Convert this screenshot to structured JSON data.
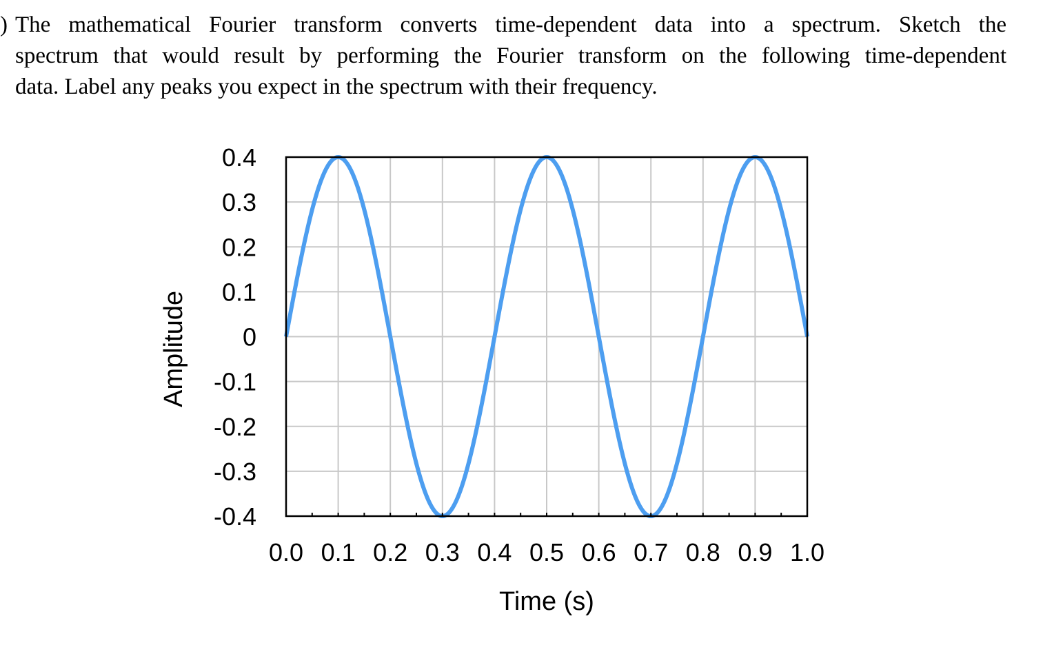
{
  "question": {
    "marker": ")",
    "lines": [
      "The mathematical Fourier transform converts time-dependent data into a spectrum.  Sketch the",
      "spectrum that would result by performing the Fourier transform on the following time-dependent",
      "data.  Label any peaks you expect in the spectrum with their frequency."
    ]
  },
  "chart_data": {
    "type": "line",
    "title": "",
    "xlabel": "Time (s)",
    "ylabel": "Amplitude",
    "xlim": [
      0.0,
      1.0
    ],
    "ylim": [
      -0.4,
      0.4
    ],
    "xticks": [
      "0.0",
      "0.1",
      "0.2",
      "0.3",
      "0.4",
      "0.5",
      "0.6",
      "0.7",
      "0.8",
      "0.9",
      "1.0"
    ],
    "yticks": [
      "0.4",
      "0.3",
      "0.2",
      "0.1",
      "0",
      "-0.1",
      "-0.2",
      "-0.3",
      "-0.4"
    ],
    "grid": true,
    "legend": "none",
    "series": [
      {
        "color": "#4d9ef0",
        "function": "0.4*sin(2*pi*2.5*t)",
        "amplitude": 0.4,
        "frequency_hz": 2.5
      }
    ]
  }
}
